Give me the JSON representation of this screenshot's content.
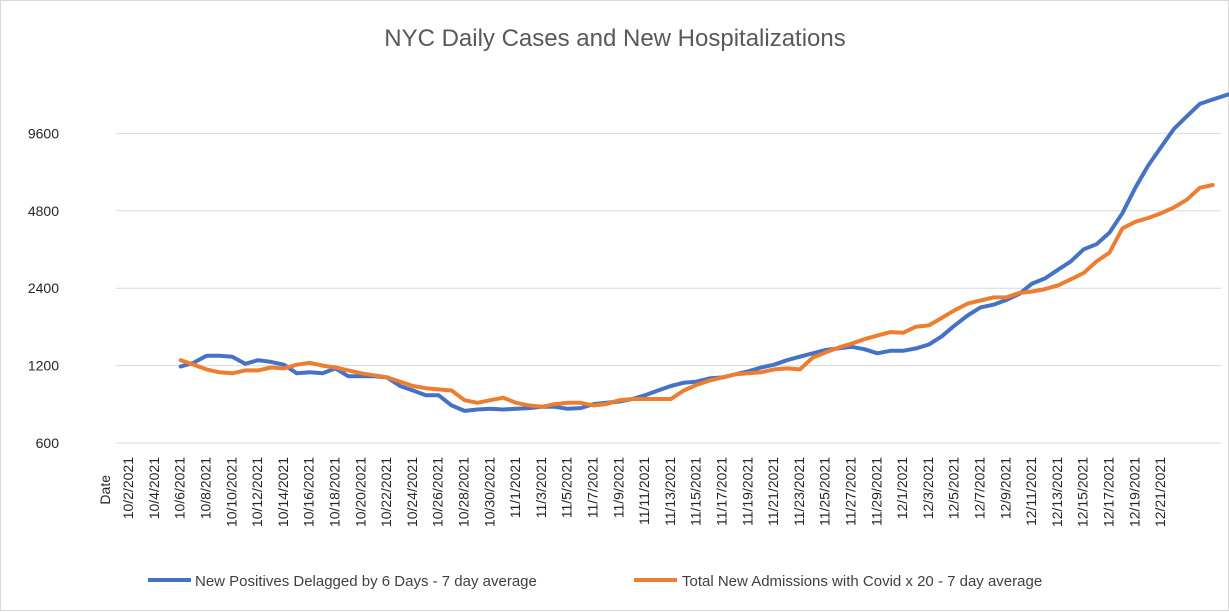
{
  "chart_data": {
    "type": "line",
    "title": "NYC Daily Cases and New Hospitalizations",
    "xlabel": "Date",
    "ylabel": "",
    "yscale": "log2",
    "yticks": [
      600,
      1200,
      2400,
      4800,
      9600
    ],
    "ytick_labels": [
      "600",
      "1200",
      "2400",
      "4800",
      "9600"
    ],
    "ylim": [
      600,
      14000
    ],
    "x_tick_labels": [
      "10/2/2021",
      "10/4/2021",
      "10/6/2021",
      "10/8/2021",
      "10/10/2021",
      "10/12/2021",
      "10/14/2021",
      "10/16/2021",
      "10/18/2021",
      "10/20/2021",
      "10/22/2021",
      "10/24/2021",
      "10/26/2021",
      "10/28/2021",
      "10/30/2021",
      "11/1/2021",
      "11/3/2021",
      "11/5/2021",
      "11/7/2021",
      "11/9/2021",
      "11/11/2021",
      "11/13/2021",
      "11/15/2021",
      "11/17/2021",
      "11/19/2021",
      "11/21/2021",
      "11/23/2021",
      "11/25/2021",
      "11/27/2021",
      "11/29/2021",
      "12/1/2021",
      "12/3/2021",
      "12/5/2021",
      "12/7/2021",
      "12/9/2021",
      "12/11/2021",
      "12/13/2021",
      "12/15/2021",
      "12/17/2021",
      "12/19/2021",
      "12/21/2021"
    ],
    "start_date": "10/1/2021",
    "series": [
      {
        "name": "New Positives Delagged by 6 Days - 7 day average",
        "color": "#4472c4",
        "start_index": 5,
        "values": [
          1190,
          1230,
          1310,
          1310,
          1300,
          1220,
          1260,
          1240,
          1210,
          1120,
          1130,
          1120,
          1170,
          1090,
          1090,
          1090,
          1080,
          1000,
          960,
          920,
          920,
          840,
          800,
          810,
          815,
          810,
          815,
          820,
          830,
          830,
          815,
          820,
          850,
          860,
          870,
          890,
          920,
          960,
          1000,
          1030,
          1040,
          1070,
          1080,
          1110,
          1140,
          1180,
          1210,
          1260,
          1300,
          1340,
          1380,
          1400,
          1420,
          1390,
          1340,
          1370,
          1370,
          1400,
          1450,
          1560,
          1720,
          1880,
          2020,
          2070,
          2160,
          2280,
          2500,
          2620,
          2830,
          3050,
          3400,
          3560,
          3950,
          4700,
          5900,
          7200,
          8500,
          10000,
          11200,
          12500,
          13000,
          13500,
          14000
        ]
      },
      {
        "name": "Total New Admissions with Covid x 20 - 7 day average",
        "color": "#ed7d31",
        "start_index": 5,
        "values": [
          1260,
          1210,
          1160,
          1130,
          1120,
          1150,
          1150,
          1180,
          1170,
          1210,
          1230,
          1200,
          1180,
          1150,
          1120,
          1100,
          1080,
          1040,
          1000,
          980,
          970,
          960,
          880,
          860,
          880,
          900,
          860,
          840,
          830,
          850,
          860,
          860,
          840,
          850,
          880,
          890,
          890,
          890,
          890,
          960,
          1010,
          1050,
          1080,
          1110,
          1120,
          1130,
          1160,
          1170,
          1160,
          1290,
          1350,
          1410,
          1460,
          1520,
          1570,
          1620,
          1610,
          1700,
          1720,
          1840,
          1970,
          2090,
          2150,
          2210,
          2210,
          2300,
          2330,
          2380,
          2460,
          2600,
          2750,
          3050,
          3300,
          4100,
          4350,
          4500,
          4700,
          4950,
          5300,
          5900,
          6050
        ]
      }
    ],
    "legend_position": "bottom",
    "grid": true
  }
}
